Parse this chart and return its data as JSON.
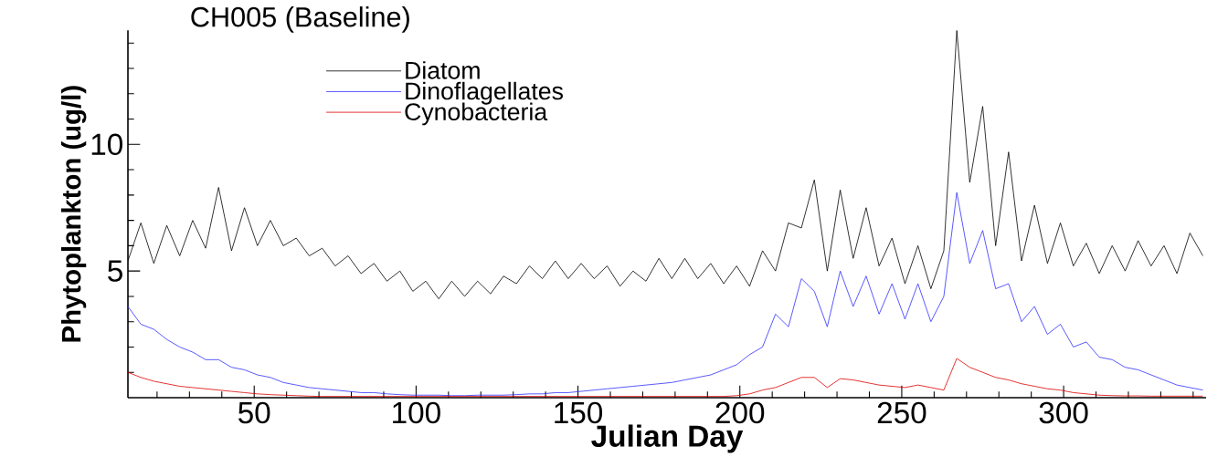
{
  "chart_data": {
    "type": "line",
    "title": "CH005 (Baseline)",
    "xlabel": "Julian Day",
    "ylabel": "Phytoplankton (ug/l)",
    "x": [
      11,
      15,
      19,
      23,
      27,
      31,
      35,
      39,
      43,
      47,
      51,
      55,
      59,
      63,
      67,
      71,
      75,
      79,
      83,
      87,
      91,
      95,
      99,
      103,
      107,
      111,
      115,
      119,
      123,
      127,
      131,
      135,
      139,
      143,
      147,
      151,
      155,
      159,
      163,
      167,
      171,
      175,
      179,
      183,
      187,
      191,
      195,
      199,
      203,
      207,
      211,
      215,
      219,
      223,
      227,
      231,
      235,
      239,
      243,
      247,
      251,
      255,
      259,
      263,
      267,
      271,
      275,
      279,
      283,
      287,
      291,
      295,
      299,
      303,
      307,
      311,
      315,
      319,
      323,
      327,
      331,
      335,
      339,
      343
    ],
    "series": [
      {
        "name": "Diatom",
        "color": "#000000",
        "values": [
          5.4,
          6.9,
          5.3,
          6.8,
          5.6,
          7.0,
          5.9,
          8.3,
          5.8,
          7.5,
          6.0,
          7.0,
          6.0,
          6.3,
          5.6,
          5.9,
          5.2,
          5.6,
          4.9,
          5.3,
          4.6,
          5.0,
          4.2,
          4.6,
          3.9,
          4.6,
          4.0,
          4.6,
          4.1,
          4.8,
          4.5,
          5.2,
          4.7,
          5.4,
          4.7,
          5.3,
          4.7,
          5.2,
          4.4,
          5.0,
          4.6,
          5.5,
          4.7,
          5.5,
          4.7,
          5.3,
          4.5,
          5.2,
          4.4,
          5.8,
          5.0,
          6.9,
          6.7,
          8.6,
          5.0,
          8.2,
          5.5,
          7.5,
          5.2,
          6.3,
          4.5,
          6.0,
          4.3,
          5.8,
          14.5,
          8.5,
          11.5,
          6.0,
          9.7,
          5.4,
          7.6,
          5.3,
          6.9,
          5.2,
          6.1,
          4.9,
          6.0,
          5.0,
          6.2,
          5.2,
          6.0,
          4.9,
          6.5,
          5.6
        ]
      },
      {
        "name": "Dinoflagellates",
        "color": "#3030ff",
        "values": [
          3.6,
          2.9,
          2.7,
          2.3,
          2.0,
          1.8,
          1.5,
          1.5,
          1.2,
          1.1,
          0.9,
          0.8,
          0.6,
          0.5,
          0.4,
          0.35,
          0.3,
          0.25,
          0.2,
          0.2,
          0.15,
          0.12,
          0.1,
          0.1,
          0.1,
          0.08,
          0.08,
          0.1,
          0.1,
          0.1,
          0.12,
          0.15,
          0.15,
          0.2,
          0.2,
          0.25,
          0.3,
          0.35,
          0.4,
          0.45,
          0.5,
          0.55,
          0.6,
          0.7,
          0.8,
          0.9,
          1.1,
          1.3,
          1.7,
          2.0,
          3.3,
          2.8,
          4.7,
          4.2,
          2.8,
          5.0,
          3.6,
          4.8,
          3.3,
          4.5,
          3.1,
          4.5,
          3.0,
          4.0,
          8.1,
          5.3,
          6.6,
          4.3,
          4.5,
          3.0,
          3.6,
          2.5,
          2.9,
          2.0,
          2.2,
          1.6,
          1.5,
          1.2,
          1.1,
          0.9,
          0.7,
          0.5,
          0.4,
          0.3
        ]
      },
      {
        "name": "Cynobacteria",
        "color": "#dd0000",
        "values": [
          1.0,
          0.8,
          0.65,
          0.55,
          0.45,
          0.4,
          0.35,
          0.3,
          0.25,
          0.2,
          0.15,
          0.12,
          0.1,
          0.08,
          0.06,
          0.05,
          0.05,
          0.05,
          0.05,
          0.05,
          0.05,
          0.05,
          0.05,
          0.05,
          0.05,
          0.05,
          0.05,
          0.05,
          0.05,
          0.05,
          0.05,
          0.05,
          0.05,
          0.05,
          0.05,
          0.05,
          0.05,
          0.05,
          0.05,
          0.05,
          0.05,
          0.05,
          0.05,
          0.05,
          0.05,
          0.05,
          0.05,
          0.08,
          0.15,
          0.3,
          0.4,
          0.6,
          0.8,
          0.8,
          0.4,
          0.75,
          0.7,
          0.6,
          0.5,
          0.45,
          0.4,
          0.5,
          0.4,
          0.3,
          1.55,
          1.2,
          1.0,
          0.8,
          0.7,
          0.55,
          0.45,
          0.35,
          0.3,
          0.2,
          0.15,
          0.1,
          0.08,
          0.07,
          0.07,
          0.06,
          0.06,
          0.06,
          0.06,
          0.06
        ]
      }
    ],
    "xlim": [
      11,
      344
    ],
    "ylim": [
      0,
      14.5
    ],
    "xticks": [
      {
        "value": 20,
        "label": null
      },
      {
        "value": 30,
        "label": null
      },
      {
        "value": 40,
        "label": null
      },
      50,
      {
        "value": 60,
        "label": null
      },
      {
        "value": 70,
        "label": null
      },
      {
        "value": 80,
        "label": null
      },
      {
        "value": 90,
        "label": null
      },
      100,
      {
        "value": 110,
        "label": null
      },
      {
        "value": 120,
        "label": null
      },
      {
        "value": 130,
        "label": null
      },
      {
        "value": 140,
        "label": null
      },
      150,
      {
        "value": 160,
        "label": null
      },
      {
        "value": 170,
        "label": null
      },
      {
        "value": 180,
        "label": null
      },
      {
        "value": 190,
        "label": null
      },
      200,
      {
        "value": 210,
        "label": null
      },
      {
        "value": 220,
        "label": null
      },
      {
        "value": 230,
        "label": null
      },
      {
        "value": 240,
        "label": null
      },
      250,
      {
        "value": 260,
        "label": null
      },
      {
        "value": 270,
        "label": null
      },
      {
        "value": 280,
        "label": null
      },
      {
        "value": 290,
        "label": null
      },
      300,
      {
        "value": 310,
        "label": null
      },
      {
        "value": 320,
        "label": null
      },
      {
        "value": 330,
        "label": null
      },
      {
        "value": 340,
        "label": null
      }
    ],
    "yticks": [
      {
        "value": 1,
        "label": null
      },
      {
        "value": 2,
        "label": null
      },
      {
        "value": 3,
        "label": null
      },
      {
        "value": 4,
        "label": null
      },
      5,
      {
        "value": 6,
        "label": null
      },
      {
        "value": 7,
        "label": null
      },
      {
        "value": 8,
        "label": null
      },
      {
        "value": 9,
        "label": null
      },
      10,
      {
        "value": 11,
        "label": null
      },
      {
        "value": 12,
        "label": null
      },
      {
        "value": 13,
        "label": null
      },
      {
        "value": 14,
        "label": null
      }
    ],
    "grid": false,
    "legend": "top",
    "marker": "none",
    "line_style": "solid"
  }
}
